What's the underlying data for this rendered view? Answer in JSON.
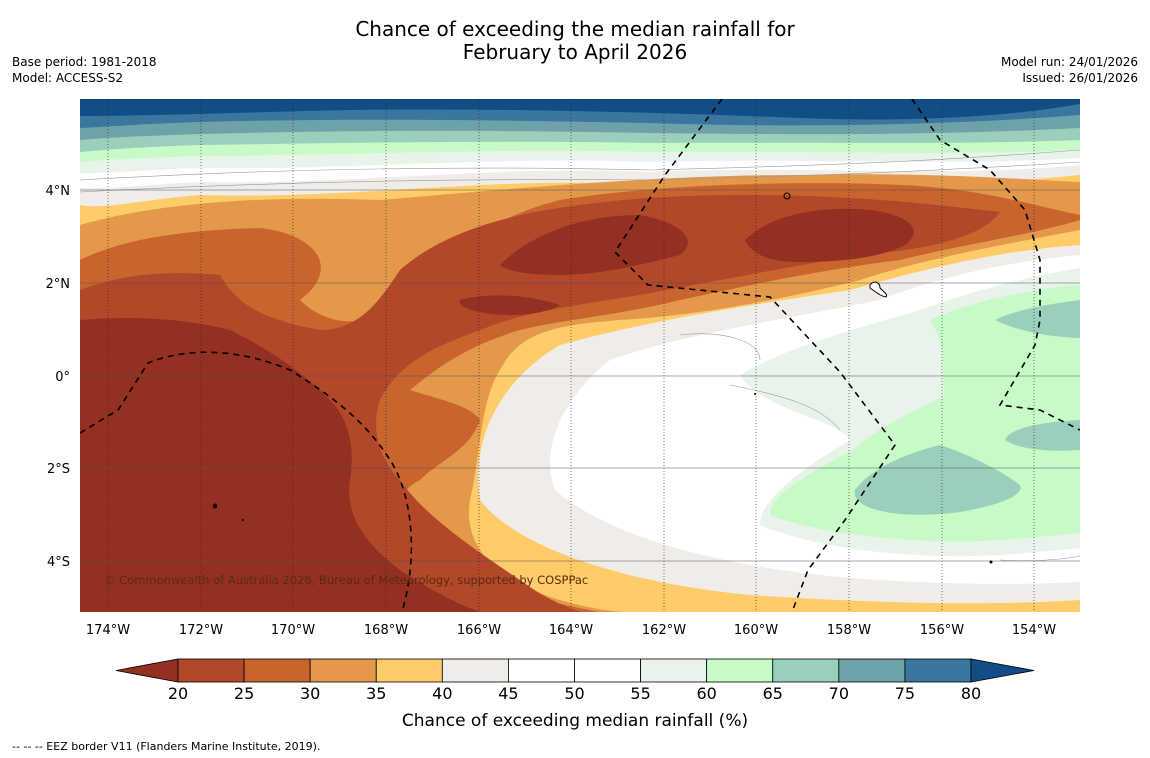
{
  "title": {
    "line1": "Chance of exceeding the median rainfall for",
    "line2": "February to April 2026"
  },
  "meta_left": {
    "base_period": "Base period: 1981-2018",
    "model": "Model: ACCESS-S2"
  },
  "meta_right": {
    "model_run": "Model run: 24/01/2026",
    "issued": "Issued: 26/01/2026"
  },
  "map": {
    "lat_labels": [
      "4°N",
      "2°N",
      "0°",
      "2°S",
      "4°S"
    ],
    "lon_labels": [
      "174°W",
      "172°W",
      "170°W",
      "168°W",
      "166°W",
      "164°W",
      "162°W",
      "160°W",
      "158°W",
      "156°W",
      "154°W"
    ],
    "copyright": "© Commonwealth of Australia 2026, Bureau of Meteorology, supported by COSPPac",
    "eez_style": "dashed"
  },
  "colorbar": {
    "ticks": [
      "20",
      "25",
      "30",
      "35",
      "40",
      "45",
      "50",
      "55",
      "60",
      "65",
      "70",
      "75",
      "80"
    ],
    "colors": [
      "#943021",
      "#b2472a",
      "#c9642f",
      "#e3984a",
      "#fdcb67",
      "#f0ece8",
      "#ffffff",
      "#ffffff",
      "#e8f4e9",
      "#c6fbc8",
      "#9ad0bb",
      "#6da3a8",
      "#3a769e",
      "#124d86"
    ],
    "label": "Chance of exceeding median rainfall (%)"
  },
  "footer": "-- -- -- EEZ border V11 (Flanders Marine Institute, 2019)."
}
